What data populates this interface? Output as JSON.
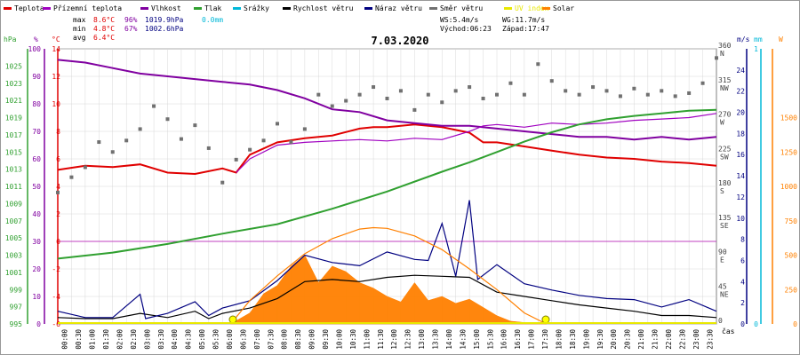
{
  "legend": [
    {
      "label": "Teplota",
      "color": "#e00000"
    },
    {
      "label": "Přízemní teplota",
      "color": "#a000c0"
    },
    {
      "label": "Vlhkost",
      "color": "#8000a0"
    },
    {
      "label": "Tlak",
      "color": "#30a030"
    },
    {
      "label": "Srážky",
      "color": "#00b8d8"
    },
    {
      "label": "Rychlost větru",
      "color": "#000000"
    },
    {
      "label": "Náraz větru",
      "color": "#000080"
    },
    {
      "label": "Směr větru",
      "color": "#707070"
    },
    {
      "label": "UV index",
      "color": "#e8e800"
    },
    {
      "label": "Solar",
      "color": "#ff8000"
    }
  ],
  "stats": {
    "max": {
      "label": "max",
      "temp": "8.6°C",
      "hum": "96%",
      "press": "1019.9hPa",
      "rain": "0.0mm"
    },
    "min": {
      "label": "min",
      "temp": "4.8°C",
      "hum": "67%",
      "press": "1002.6hPa"
    },
    "avg": {
      "label": "avg",
      "temp": "6.4°C"
    }
  },
  "info": {
    "ws": "WS:5.4m/s",
    "wg": "WG:11.7m/s",
    "sunrise": "Východ:06:23",
    "sunset": "Západ:17:47"
  },
  "axis_units": {
    "hpa": "hPa",
    "pct": "%",
    "c": "°C",
    "ms": "m/s",
    "mm": "mm",
    "w": "W",
    "time": "čas"
  },
  "chart_data": {
    "type": "line",
    "title": "7.03.2020",
    "xlabel": "čas",
    "x_ticks": [
      "00:00",
      "00:30",
      "01:00",
      "01:30",
      "02:00",
      "02:30",
      "03:00",
      "03:30",
      "04:00",
      "04:30",
      "05:00",
      "05:30",
      "06:00",
      "06:30",
      "07:00",
      "07:30",
      "08:00",
      "08:30",
      "09:00",
      "09:30",
      "10:00",
      "10:30",
      "11:00",
      "11:30",
      "12:00",
      "12:30",
      "13:00",
      "13:30",
      "14:00",
      "14:30",
      "15:00",
      "15:30",
      "16:00",
      "16:30",
      "17:00",
      "17:30",
      "18:00",
      "18:30",
      "19:00",
      "19:30",
      "20:00",
      "20:30",
      "21:00",
      "21:30",
      "22:00",
      "22:30",
      "23:00",
      "23:30"
    ],
    "axes": {
      "pressure": {
        "label": "hPa",
        "range": [
          995,
          1027
        ],
        "ticks": [
          995,
          997,
          999,
          1001,
          1003,
          1005,
          1007,
          1009,
          1011,
          1013,
          1015,
          1017,
          1019,
          1021,
          1023,
          1025
        ]
      },
      "humidity": {
        "label": "%",
        "range": [
          0,
          100
        ],
        "ticks": [
          0,
          10,
          20,
          30,
          40,
          50,
          60,
          70,
          80,
          90,
          100
        ]
      },
      "temperature": {
        "label": "°C",
        "range": [
          -6,
          14
        ],
        "ticks": [
          -6,
          -4,
          -2,
          0,
          2,
          4,
          6,
          8,
          10,
          12,
          14
        ]
      },
      "wind_dir": {
        "range": [
          0,
          360
        ],
        "ticks": [
          "0",
          "45\nNE",
          "90\nE",
          "135\nSE",
          "180\nS",
          "225\nSW",
          "270\nW",
          "315\nNW",
          "360\nN"
        ]
      },
      "wind_speed": {
        "label": "m/s",
        "range": [
          0,
          26
        ],
        "ticks": [
          0,
          2,
          4,
          6,
          8,
          10,
          12,
          14,
          16,
          18,
          20,
          22,
          24
        ]
      },
      "rain": {
        "label": "mm",
        "range": [
          0,
          1
        ],
        "ticks": [
          0,
          1
        ]
      },
      "solar": {
        "label": "W",
        "range": [
          0,
          2000
        ],
        "ticks": [
          0,
          250,
          500,
          750,
          1000,
          1250,
          1500
        ]
      }
    },
    "grid": true,
    "series": [
      {
        "name": "Teplota",
        "unit": "°C",
        "color": "#e00000",
        "points": [
          [
            0,
            5.2
          ],
          [
            1,
            5.5
          ],
          [
            2,
            5.4
          ],
          [
            3,
            5.6
          ],
          [
            4,
            5.0
          ],
          [
            5,
            4.9
          ],
          [
            6,
            5.3
          ],
          [
            6.5,
            5.0
          ],
          [
            7,
            6.3
          ],
          [
            8,
            7.2
          ],
          [
            9,
            7.5
          ],
          [
            10,
            7.7
          ],
          [
            11,
            8.2
          ],
          [
            11.5,
            8.3
          ],
          [
            12,
            8.3
          ],
          [
            13,
            8.5
          ],
          [
            14,
            8.3
          ],
          [
            15,
            7.9
          ],
          [
            15.5,
            7.2
          ],
          [
            16,
            7.2
          ],
          [
            17,
            6.9
          ],
          [
            18,
            6.6
          ],
          [
            19,
            6.3
          ],
          [
            20,
            6.1
          ],
          [
            21,
            6.0
          ],
          [
            22,
            5.8
          ],
          [
            23,
            5.7
          ],
          [
            24,
            5.5
          ]
        ]
      },
      {
        "name": "Vlhkost",
        "unit": "%",
        "color": "#8000a0",
        "points": [
          [
            0,
            96
          ],
          [
            1,
            95
          ],
          [
            2,
            93
          ],
          [
            3,
            91
          ],
          [
            4,
            90
          ],
          [
            5,
            89
          ],
          [
            6,
            88
          ],
          [
            7,
            87
          ],
          [
            8,
            85
          ],
          [
            9,
            82
          ],
          [
            10,
            78
          ],
          [
            11,
            77
          ],
          [
            12,
            74
          ],
          [
            13,
            73
          ],
          [
            14,
            72
          ],
          [
            15,
            72
          ],
          [
            16,
            71
          ],
          [
            17,
            70
          ],
          [
            18,
            69
          ],
          [
            19,
            68
          ],
          [
            20,
            68
          ],
          [
            21,
            67
          ],
          [
            22,
            68
          ],
          [
            23,
            67
          ],
          [
            24,
            68
          ]
        ]
      },
      {
        "name": "Přízemní teplota",
        "unit": "°C",
        "color": "#a000c0",
        "points": [
          [
            6.5,
            5.0
          ],
          [
            7,
            6.0
          ],
          [
            8,
            7.0
          ],
          [
            9,
            7.2
          ],
          [
            10,
            7.3
          ],
          [
            11,
            7.4
          ],
          [
            12,
            7.3
          ],
          [
            13,
            7.5
          ],
          [
            14,
            7.4
          ],
          [
            15,
            8.0
          ],
          [
            15.5,
            8.4
          ],
          [
            16,
            8.5
          ],
          [
            17,
            8.3
          ],
          [
            18,
            8.6
          ],
          [
            19,
            8.5
          ],
          [
            20,
            8.6
          ],
          [
            21,
            8.8
          ],
          [
            22,
            8.9
          ],
          [
            23,
            9.0
          ],
          [
            24,
            9.3
          ]
        ]
      },
      {
        "name": "Tlak",
        "unit": "hPa",
        "color": "#30a030",
        "points": [
          [
            0,
            1002.6
          ],
          [
            2,
            1003.3
          ],
          [
            4,
            1004.3
          ],
          [
            6,
            1005.5
          ],
          [
            8,
            1006.6
          ],
          [
            10,
            1008.4
          ],
          [
            12,
            1010.4
          ],
          [
            14,
            1012.7
          ],
          [
            15,
            1013.8
          ],
          [
            16,
            1015.0
          ],
          [
            17,
            1016.2
          ],
          [
            18,
            1017.3
          ],
          [
            19,
            1018.2
          ],
          [
            20,
            1018.8
          ],
          [
            21,
            1019.2
          ],
          [
            22,
            1019.5
          ],
          [
            23,
            1019.8
          ],
          [
            24,
            1019.9
          ]
        ]
      },
      {
        "name": "Rychlost větru",
        "unit": "m/s",
        "color": "#000000",
        "points": [
          [
            0,
            0.6
          ],
          [
            1,
            0.5
          ],
          [
            2,
            0.5
          ],
          [
            3,
            1.0
          ],
          [
            4,
            0.6
          ],
          [
            5,
            1.2
          ],
          [
            5.5,
            0.5
          ],
          [
            6,
            1.0
          ],
          [
            7,
            1.5
          ],
          [
            8,
            2.4
          ],
          [
            9,
            4.0
          ],
          [
            10,
            4.2
          ],
          [
            11,
            4.0
          ],
          [
            12,
            4.4
          ],
          [
            13,
            4.6
          ],
          [
            14,
            4.5
          ],
          [
            15,
            4.4
          ],
          [
            16,
            3.0
          ],
          [
            17,
            2.6
          ],
          [
            18,
            2.2
          ],
          [
            19,
            1.8
          ],
          [
            20,
            1.5
          ],
          [
            21,
            1.2
          ],
          [
            22,
            0.8
          ],
          [
            23,
            0.8
          ],
          [
            24,
            0.6
          ]
        ]
      },
      {
        "name": "Náraz větru",
        "unit": "m/s",
        "color": "#000080",
        "points": [
          [
            0,
            1.2
          ],
          [
            1,
            0.6
          ],
          [
            2,
            0.6
          ],
          [
            3,
            2.8
          ],
          [
            3.2,
            0.5
          ],
          [
            4,
            1.0
          ],
          [
            5,
            2.1
          ],
          [
            5.5,
            0.8
          ],
          [
            6,
            1.5
          ],
          [
            7,
            2.2
          ],
          [
            8,
            4.1
          ],
          [
            9,
            6.5
          ],
          [
            10,
            5.8
          ],
          [
            11,
            5.5
          ],
          [
            12,
            6.8
          ],
          [
            13,
            6.1
          ],
          [
            13.5,
            6.0
          ],
          [
            14,
            9.5
          ],
          [
            14.5,
            4.5
          ],
          [
            15,
            11.7
          ],
          [
            15.3,
            4.2
          ],
          [
            16,
            5.6
          ],
          [
            17,
            3.8
          ],
          [
            18,
            3.2
          ],
          [
            19,
            2.7
          ],
          [
            20,
            2.4
          ],
          [
            21,
            2.3
          ],
          [
            22,
            1.6
          ],
          [
            23,
            2.3
          ],
          [
            24,
            1.2
          ]
        ]
      },
      {
        "name": "Směr větru",
        "unit": "°",
        "color": "#707070",
        "points": [
          [
            0,
            172
          ],
          [
            0.5,
            192
          ],
          [
            1,
            205
          ],
          [
            1.5,
            238
          ],
          [
            2,
            225
          ],
          [
            2.5,
            240
          ],
          [
            3,
            255
          ],
          [
            3.5,
            285
          ],
          [
            4,
            268
          ],
          [
            4.5,
            242
          ],
          [
            5,
            260
          ],
          [
            5.5,
            230
          ],
          [
            6,
            185
          ],
          [
            6.5,
            215
          ],
          [
            7,
            228
          ],
          [
            7.5,
            240
          ],
          [
            8,
            262
          ],
          [
            8.5,
            238
          ],
          [
            9,
            255
          ],
          [
            9.5,
            300
          ],
          [
            10,
            285
          ],
          [
            10.5,
            292
          ],
          [
            11,
            300
          ],
          [
            11.5,
            310
          ],
          [
            12,
            295
          ],
          [
            12.5,
            305
          ],
          [
            13,
            280
          ],
          [
            13.5,
            300
          ],
          [
            14,
            290
          ],
          [
            14.5,
            305
          ],
          [
            15,
            310
          ],
          [
            15.5,
            295
          ],
          [
            16,
            300
          ],
          [
            16.5,
            315
          ],
          [
            17,
            300
          ],
          [
            17.5,
            340
          ],
          [
            18,
            318
          ],
          [
            18.5,
            305
          ],
          [
            19,
            300
          ],
          [
            19.5,
            310
          ],
          [
            20,
            305
          ],
          [
            20.5,
            298
          ],
          [
            21,
            308
          ],
          [
            21.5,
            300
          ],
          [
            22,
            305
          ],
          [
            22.5,
            298
          ],
          [
            23,
            302
          ],
          [
            23.5,
            315
          ],
          [
            24,
            348
          ]
        ]
      },
      {
        "name": "Solar",
        "unit": "W",
        "color": "#ff8000",
        "points": [
          [
            6.3,
            0
          ],
          [
            7,
            80
          ],
          [
            7.5,
            220
          ],
          [
            8,
            280
          ],
          [
            8.5,
            420
          ],
          [
            9,
            500
          ],
          [
            9.5,
            300
          ],
          [
            10,
            420
          ],
          [
            10.5,
            380
          ],
          [
            11,
            300
          ],
          [
            11.5,
            260
          ],
          [
            12,
            200
          ],
          [
            12.5,
            160
          ],
          [
            13,
            300
          ],
          [
            13.5,
            170
          ],
          [
            14,
            200
          ],
          [
            14.5,
            150
          ],
          [
            15,
            180
          ],
          [
            15.5,
            120
          ],
          [
            16,
            60
          ],
          [
            16.5,
            20
          ],
          [
            17,
            10
          ],
          [
            17.8,
            0
          ]
        ]
      },
      {
        "name": "Solar max",
        "unit": "W",
        "color": "#ff8000",
        "points": [
          [
            6.3,
            0
          ],
          [
            7,
            170
          ],
          [
            8,
            350
          ],
          [
            9,
            510
          ],
          [
            10,
            620
          ],
          [
            11,
            690
          ],
          [
            11.5,
            700
          ],
          [
            12,
            695
          ],
          [
            13,
            640
          ],
          [
            14,
            540
          ],
          [
            15,
            400
          ],
          [
            16,
            250
          ],
          [
            17,
            80
          ],
          [
            17.8,
            0
          ]
        ]
      }
    ],
    "sun_markers": [
      6.38,
      17.78
    ]
  }
}
